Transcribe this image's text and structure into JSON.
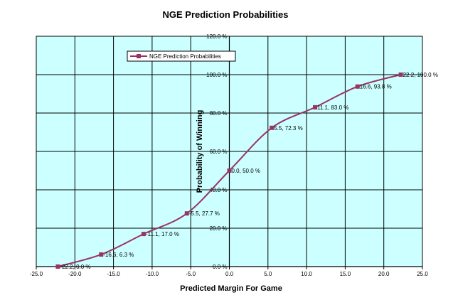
{
  "chart_data": {
    "type": "line",
    "title": "NGE Prediction Probabilities",
    "xlabel": "Predicted Margin For Game",
    "ylabel": "Probability of Winning",
    "xlim": [
      -25,
      25
    ],
    "ylim": [
      0,
      120
    ],
    "x_ticks": [
      -25,
      -20,
      -15,
      -10,
      -5,
      0,
      5,
      10,
      15,
      20,
      25
    ],
    "x_tick_labels": [
      "-25.0",
      "-20.0",
      "-15.0",
      "-10.0",
      "-5.0",
      "0.0",
      "5.0",
      "10.0",
      "15.0",
      "20.0",
      "25.0"
    ],
    "y_ticks": [
      0,
      20,
      40,
      60,
      80,
      100,
      120
    ],
    "y_tick_labels": [
      "0.0 %",
      "20.0 %",
      "40.0 %",
      "60.0 %",
      "80.0 %",
      "100.0 %",
      "120.0 %"
    ],
    "grid": true,
    "legend_placement": "top-left",
    "plot_background": "#ccffff",
    "series": [
      {
        "name": "NGE Prediction Probabilities",
        "color": "#993366",
        "marker": "square",
        "points": [
          {
            "x": -22.2,
            "y": 0.0,
            "label": "-22.2, 0.0 %"
          },
          {
            "x": -16.6,
            "y": 6.3,
            "label": "-16.6, 6.3 %"
          },
          {
            "x": -11.1,
            "y": 17.0,
            "label": "-11.1, 17.0 %"
          },
          {
            "x": -5.5,
            "y": 27.7,
            "label": "-5.5, 27.7 %"
          },
          {
            "x": 0.0,
            "y": 50.0,
            "label": "0.0, 50.0 %"
          },
          {
            "x": 5.5,
            "y": 72.3,
            "label": "5.5, 72.3 %"
          },
          {
            "x": 11.1,
            "y": 83.0,
            "label": "11.1, 83.0 %"
          },
          {
            "x": 16.6,
            "y": 93.8,
            "label": "16.6, 93.8 %"
          },
          {
            "x": 22.2,
            "y": 100.0,
            "label": "22.2, 100.0 %"
          }
        ]
      }
    ]
  }
}
